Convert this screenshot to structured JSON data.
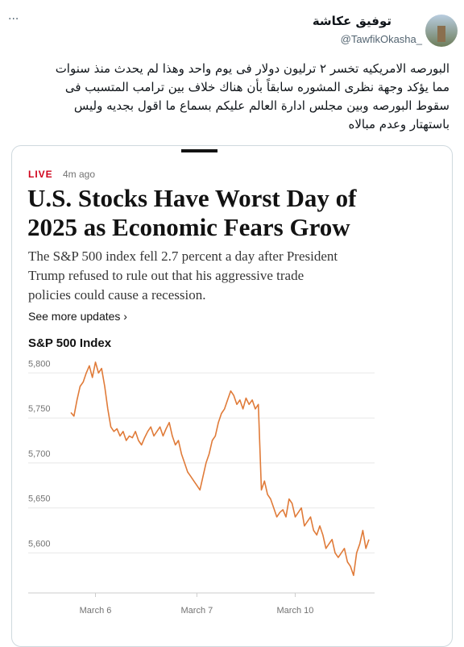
{
  "tweet": {
    "name": "توفيق عكاشة",
    "handle": "@TawfikOkasha_",
    "more": "···",
    "text_lines": [
      "البورصه الامريكيه تخسر ٢ ترليون دولار فى يوم واحد وهذا لم يحدث منذ سنوات",
      "مما يؤكد وجهة نظرى المشوره سابقاً بأن هناك خلاف بين ترامب المتسبب فى",
      "سقوط البورصه وبين مجلس ادارة العالم عليكم بسماع ما اقول بجديه وليس",
      "باستهتار وعدم مبالاه"
    ]
  },
  "card": {
    "live": "LIVE",
    "time": "4m ago",
    "headline_lines": [
      "U.S. Stocks Have Worst Day of",
      "2025 as Economic Fears Grow"
    ],
    "summary_lines": [
      "The S&P 500 index fell 2.7 percent a day after President",
      "Trump refused to rule out that his aggressive trade",
      "policies could cause a recession."
    ],
    "more_link": "See more updates ›"
  },
  "chart_data": {
    "type": "line",
    "title": "S&P 500 Index",
    "color": "#e07b39",
    "grid": true,
    "ylim": [
      5560,
      5820
    ],
    "yticks": [
      {
        "value": 5600,
        "label": "5,600"
      },
      {
        "value": 5650,
        "label": "5,650"
      },
      {
        "value": 5700,
        "label": "5,700"
      },
      {
        "value": 5750,
        "label": "5,750"
      },
      {
        "value": 5800,
        "label": "5,800"
      }
    ],
    "categories": [
      null,
      null,
      null,
      null,
      null,
      null,
      null,
      null,
      "March 6",
      null,
      null,
      null,
      null,
      null,
      null,
      null,
      null,
      null,
      null,
      null,
      null,
      null,
      null,
      null,
      null,
      null,
      null,
      null,
      null,
      null,
      null,
      null,
      null,
      null,
      null,
      null,
      null,
      null,
      null,
      null,
      null,
      "March 7",
      null,
      null,
      null,
      null,
      null,
      null,
      null,
      null,
      null,
      null,
      null,
      null,
      null,
      null,
      null,
      null,
      null,
      null,
      null,
      null,
      null,
      null,
      null,
      null,
      null,
      null,
      null,
      null,
      null,
      null,
      null,
      "March 10",
      null,
      null,
      null,
      null,
      null,
      null,
      null,
      null,
      null,
      null,
      null,
      null,
      null,
      null,
      null,
      null,
      null,
      null,
      null,
      null,
      null,
      null,
      null,
      null
    ],
    "values": [
      5756,
      5752,
      5770,
      5785,
      5790,
      5800,
      5808,
      5795,
      5812,
      5800,
      5805,
      5785,
      5760,
      5740,
      5735,
      5738,
      5730,
      5735,
      5725,
      5730,
      5728,
      5735,
      5725,
      5720,
      5728,
      5735,
      5740,
      5730,
      5735,
      5740,
      5730,
      5738,
      5745,
      5730,
      5720,
      5725,
      5710,
      5700,
      5690,
      5685,
      5680,
      5675,
      5670,
      5685,
      5700,
      5710,
      5725,
      5730,
      5745,
      5755,
      5760,
      5770,
      5780,
      5775,
      5765,
      5770,
      5760,
      5772,
      5765,
      5770,
      5760,
      5765,
      5670,
      5680,
      5665,
      5660,
      5650,
      5640,
      5645,
      5648,
      5640,
      5660,
      5655,
      5640,
      5645,
      5650,
      5630,
      5635,
      5640,
      5625,
      5620,
      5630,
      5620,
      5605,
      5610,
      5615,
      5600,
      5595,
      5600,
      5605,
      5590,
      5585,
      5575,
      5600,
      5610,
      5625,
      5605,
      5615
    ]
  }
}
